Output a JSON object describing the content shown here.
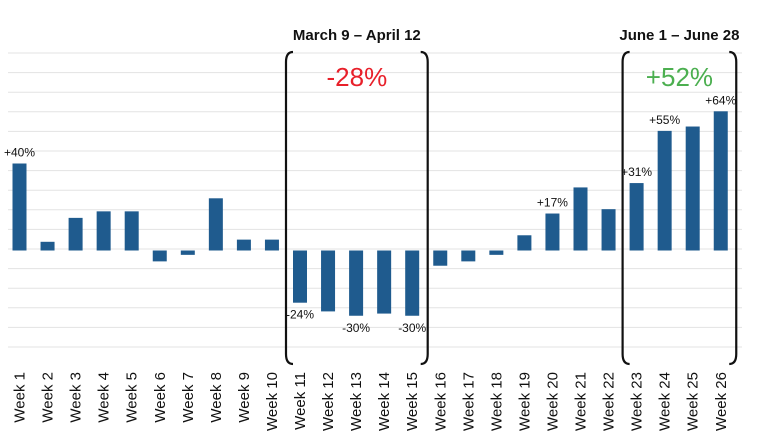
{
  "chart_data": {
    "type": "bar",
    "categories": [
      "Week 1",
      "Week 2",
      "Week 3",
      "Week 4",
      "Week 5",
      "Week 6",
      "Week 7",
      "Week 8",
      "Week 9",
      "Week 10",
      "Week 11",
      "Week 12",
      "Week 13",
      "Week 14",
      "Week 15",
      "Week 16",
      "Week 17",
      "Week 18",
      "Week 19",
      "Week 20",
      "Week 21",
      "Week 22",
      "Week 23",
      "Week 24",
      "Week 25",
      "Week 26"
    ],
    "values": [
      40,
      4,
      15,
      18,
      18,
      -5,
      -2,
      24,
      5,
      5,
      -24,
      -28,
      -30,
      -29,
      -30,
      -7,
      -5,
      -2,
      7,
      17,
      29,
      19,
      31,
      55,
      57,
      64
    ],
    "data_labels": [
      {
        "index": 0,
        "text": "+40%"
      },
      {
        "index": 10,
        "text": "-24%"
      },
      {
        "index": 12,
        "text": "-30%"
      },
      {
        "index": 14,
        "text": "-30%"
      },
      {
        "index": 19,
        "text": "+17%"
      },
      {
        "index": 22,
        "text": "+31%"
      },
      {
        "index": 23,
        "text": "+55%"
      },
      {
        "index": 25,
        "text": "+64%"
      }
    ],
    "ylim": [
      -51,
      91
    ],
    "grid": true,
    "bar_color": "#1f5b8e",
    "grid_color": "#e3e3e3",
    "title": "",
    "xlabel": "",
    "ylabel": "",
    "annotations": [
      {
        "title": "March 9 – April 12",
        "value": "-28%",
        "color": "#e8202a",
        "start_index": 10,
        "end_index": 14
      },
      {
        "title": "June 1 – June 28",
        "value": "+52%",
        "color": "#4caf50",
        "start_index": 22,
        "end_index": 25
      }
    ]
  }
}
